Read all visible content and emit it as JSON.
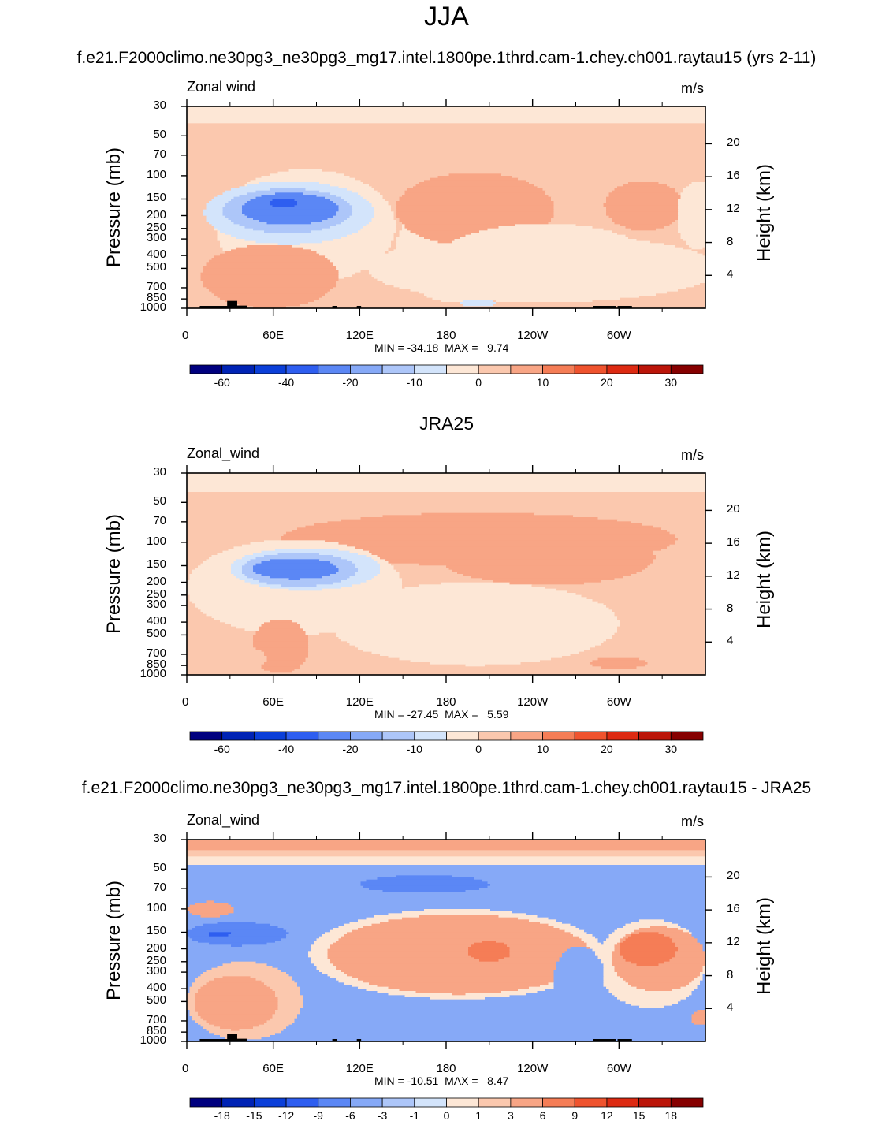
{
  "main_title": "JJA",
  "panels": [
    {
      "title": "f.e21.F2000climo.ne30pg3_ne30pg3_mg17.intel.1800pe.1thrd.cam-1.chey.ch001.raytau15 (yrs 2-11)",
      "left_label": "Zonal wind",
      "units": "m/s",
      "stats": "MIN = -34.18  MAX =   9.74",
      "colorbar_labels": [
        "-60",
        "-40",
        "-20",
        "-10",
        "0",
        "10",
        "20",
        "30"
      ]
    },
    {
      "title": "JRA25",
      "left_label": "Zonal_wind",
      "units": "m/s",
      "stats": "MIN = -27.45  MAX =   5.59",
      "colorbar_labels": [
        "-60",
        "-40",
        "-20",
        "-10",
        "0",
        "10",
        "20",
        "30"
      ]
    },
    {
      "title": "f.e21.F2000climo.ne30pg3_ne30pg3_mg17.intel.1800pe.1thrd.cam-1.chey.ch001.raytau15 - JRA25",
      "left_label": "Zonal_wind",
      "units": "m/s",
      "stats": "MIN = -10.51  MAX =   8.47",
      "colorbar_labels": [
        "-18",
        "-15",
        "-12",
        "-9",
        "-6",
        "-3",
        "-1",
        "0",
        "1",
        "3",
        "6",
        "9",
        "12",
        "15",
        "18"
      ]
    }
  ],
  "axes": {
    "ylabel": "Pressure (mb)",
    "y2label": "Height (km)",
    "pressure_ticks": [
      30,
      50,
      70,
      100,
      150,
      200,
      250,
      300,
      400,
      500,
      700,
      850,
      1000
    ],
    "height_ticks": [
      20,
      16,
      12,
      8,
      4
    ],
    "x_tick_labels": [
      "0",
      "60E",
      "120E",
      "180",
      "120W",
      "60W"
    ]
  },
  "colors": {
    "colormap": [
      "#00007f",
      "#0023b5",
      "#0b3fd9",
      "#2e5ef0",
      "#5b87f5",
      "#86a9f7",
      "#adc6f9",
      "#d3e4fb",
      "#fde7d6",
      "#fbc8ae",
      "#f8a585",
      "#f57d56",
      "#ef532e",
      "#dd2a12",
      "#bb1509",
      "#860000"
    ],
    "land": "#000000"
  },
  "chart_data": [
    {
      "type": "heatmap",
      "title": "f.e21.F2000climo.ne30pg3_ne30pg3_mg17.intel.1800pe.1thrd.cam-1.chey.ch001.raytau15 (yrs 2-11)",
      "ylabel": "Pressure (mb)",
      "y2label": "Height (km)",
      "x_range": [
        0,
        360
      ],
      "p_range": [
        30,
        1000
      ],
      "levels": [
        -70,
        -60,
        -50,
        -40,
        -30,
        -20,
        -15,
        -10,
        -5,
        0,
        5,
        10,
        15,
        20,
        25,
        30,
        35
      ],
      "min": -34.18,
      "max": 9.74,
      "field": {
        "base": [
          {
            "p": [
              30,
              40
            ],
            "v": -2
          },
          {
            "p": [
              40,
              1000
            ],
            "v": 2
          }
        ],
        "features": [
          {
            "x": [
              20,
              145
            ],
            "p": [
              90,
              650
            ],
            "v": -3
          },
          {
            "x": [
              125,
              370
            ],
            "p": [
              280,
              900
            ],
            "v": -3
          },
          {
            "x": [
              12,
              130
            ],
            "p": [
              110,
              330
            ],
            "v": -8
          },
          {
            "x": [
              25,
              115
            ],
            "p": [
              125,
              270
            ],
            "v": -15
          },
          {
            "x": [
              38,
              105
            ],
            "p": [
              135,
              235
            ],
            "v": -25
          },
          {
            "x": [
              57,
              77
            ],
            "p": [
              147,
              175
            ],
            "v": -34
          },
          {
            "x": [
              145,
              225
            ],
            "p": [
              150,
              900
            ],
            "v": -2
          },
          {
            "x": [
              145,
              255
            ],
            "p": [
              95,
              340
            ],
            "v": 8
          },
          {
            "x": [
              185,
              235
            ],
            "p": [
              120,
              280
            ],
            "v": 9
          },
          {
            "x": [
              290,
              345
            ],
            "p": [
              110,
              260
            ],
            "v": 9
          },
          {
            "x": [
              305,
              335
            ],
            "p": [
              135,
              210
            ],
            "v": 9.7
          },
          {
            "x": [
              172,
              325
            ],
            "p": [
              230,
              900
            ],
            "v": -2
          },
          {
            "x": [
              10,
              105
            ],
            "p": [
              330,
              1000
            ],
            "v": 5
          },
          {
            "x": [
              40,
              90
            ],
            "p": [
              420,
              820
            ],
            "v": 8
          },
          {
            "x": [
              340,
              370
            ],
            "p": [
              110,
              360
            ],
            "v": -2
          },
          {
            "x": [
              190,
              215
            ],
            "p": [
              850,
              980
            ],
            "v": -6
          }
        ]
      }
    },
    {
      "type": "heatmap",
      "title": "JRA25",
      "ylabel": "Pressure (mb)",
      "y2label": "Height (km)",
      "x_range": [
        0,
        360
      ],
      "p_range": [
        30,
        1000
      ],
      "levels": [
        -70,
        -60,
        -50,
        -40,
        -30,
        -20,
        -15,
        -10,
        -5,
        0,
        5,
        10,
        15,
        20,
        25,
        30,
        35
      ],
      "min": -27.45,
      "max": 5.59,
      "field": {
        "base": [
          {
            "p": [
              30,
              42
            ],
            "v": -2
          },
          {
            "p": [
              42,
              1000
            ],
            "v": 2
          }
        ],
        "features": [
          {
            "x": [
              65,
              340
            ],
            "p": [
              60,
              150
            ],
            "v": 6
          },
          {
            "x": [
              175,
              325
            ],
            "p": [
              80,
              210
            ],
            "v": 6
          },
          {
            "x": [
              0,
              150
            ],
            "p": [
              95,
              500
            ],
            "v": -3
          },
          {
            "x": [
              30,
              135
            ],
            "p": [
              110,
              230
            ],
            "v": -8
          },
          {
            "x": [
              38,
              118
            ],
            "p": [
              120,
              215
            ],
            "v": -15
          },
          {
            "x": [
              45,
              105
            ],
            "p": [
              132,
              190
            ],
            "v": -27
          },
          {
            "x": [
              100,
              300
            ],
            "p": [
              200,
              850
            ],
            "v": -2
          },
          {
            "x": [
              45,
              85
            ],
            "p": [
              380,
              980
            ],
            "v": 6
          },
          {
            "x": [
              280,
              320
            ],
            "p": [
              740,
              900
            ],
            "v": 6
          },
          {
            "x": [
              5,
              55
            ],
            "p": [
              580,
              980
            ],
            "v": 3
          }
        ]
      }
    },
    {
      "type": "heatmap",
      "title": "f.e21.F2000climo.ne30pg3_ne30pg3_mg17.intel.1800pe.1thrd.cam-1.chey.ch001.raytau15 - JRA25",
      "ylabel": "Pressure (mb)",
      "y2label": "Height (km)",
      "x_range": [
        0,
        360
      ],
      "p_range": [
        30,
        1000
      ],
      "levels": [
        -21,
        -18,
        -15,
        -12,
        -9,
        -6,
        -3,
        -1,
        0,
        1,
        3,
        6,
        9,
        12,
        15,
        18,
        21
      ],
      "min": -10.51,
      "max": 8.47,
      "field": {
        "base": [
          {
            "p": [
              30,
              36
            ],
            "v": 4
          },
          {
            "p": [
              36,
              40
            ],
            "v": 2
          },
          {
            "p": [
              40,
              46
            ],
            "v": 0.5
          },
          {
            "p": [
              46,
              1000
            ],
            "v": -4
          }
        ],
        "features": [
          {
            "x": [
              120,
              210
            ],
            "p": [
              56,
              76
            ],
            "v": -7
          },
          {
            "x": [
              0,
              70
            ],
            "p": [
              125,
              190
            ],
            "v": -7
          },
          {
            "x": [
              15,
              30
            ],
            "p": [
              147,
              162
            ],
            "v": -10.5
          },
          {
            "x": [
              0,
              33
            ],
            "p": [
              88,
              115
            ],
            "v": 3
          },
          {
            "x": [
              75,
              110
            ],
            "p": [
              400,
              900
            ],
            "v": -4.5
          },
          {
            "x": [
              85,
              290
            ],
            "p": [
              100,
              480
            ],
            "v": 0.5
          },
          {
            "x": [
              98,
              280
            ],
            "p": [
              110,
              440
            ],
            "v": 3
          },
          {
            "x": [
              105,
              230
            ],
            "p": [
              135,
              260
            ],
            "v": 4.5
          },
          {
            "x": [
              195,
              225
            ],
            "p": [
              175,
              250
            ],
            "v": 8.4
          },
          {
            "x": [
              285,
              360
            ],
            "p": [
              120,
              560
            ],
            "v": 0.5
          },
          {
            "x": [
              295,
              360
            ],
            "p": [
              135,
              420
            ],
            "v": 3
          },
          {
            "x": [
              300,
              340
            ],
            "p": [
              150,
              270
            ],
            "v": 7
          },
          {
            "x": [
              255,
              290
            ],
            "p": [
              190,
              600
            ],
            "v": -3.5
          },
          {
            "x": [
              0,
              80
            ],
            "p": [
              250,
              980
            ],
            "v": 1
          },
          {
            "x": [
              5,
              63
            ],
            "p": [
              320,
              820
            ],
            "v": 3
          },
          {
            "x": [
              25,
              55
            ],
            "p": [
              380,
              600
            ],
            "v": 4
          },
          {
            "x": [
              350,
              365
            ],
            "p": [
              580,
              760
            ],
            "v": 3
          }
        ]
      }
    }
  ]
}
